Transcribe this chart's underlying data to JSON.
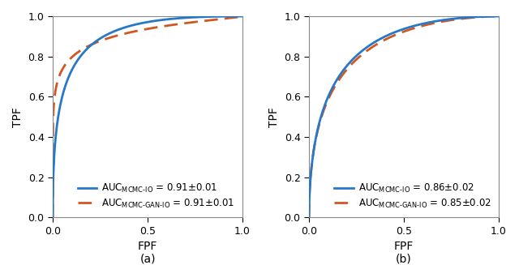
{
  "subplot_a": {
    "auc_mcmc_io": 0.91,
    "auc_mcmc_io_err": 0.01,
    "auc_mcmc_gan_io": 0.91,
    "auc_mcmc_gan_io_err": 0.01,
    "roc_shape_mcmc": 2.8,
    "roc_shape_gan": 3.8,
    "label": "(a)"
  },
  "subplot_b": {
    "auc_mcmc_io": 0.86,
    "auc_mcmc_io_err": 0.02,
    "auc_mcmc_gan_io": 0.85,
    "auc_mcmc_gan_io_err": 0.02,
    "roc_shape_mcmc": 1.9,
    "roc_shape_gan": 2.05,
    "label": "(b)"
  },
  "color_mcmc": "#2878C8",
  "color_gan": "#D05820",
  "ylabel": "TPF",
  "xlabel": "FPF",
  "xlim": [
    0,
    1
  ],
  "ylim": [
    0,
    1
  ],
  "xticks": [
    0,
    0.5,
    1
  ],
  "yticks": [
    0,
    0.2,
    0.4,
    0.6,
    0.8,
    1
  ],
  "legend_fontsize": 8.5,
  "axis_fontsize": 10,
  "tick_fontsize": 9
}
